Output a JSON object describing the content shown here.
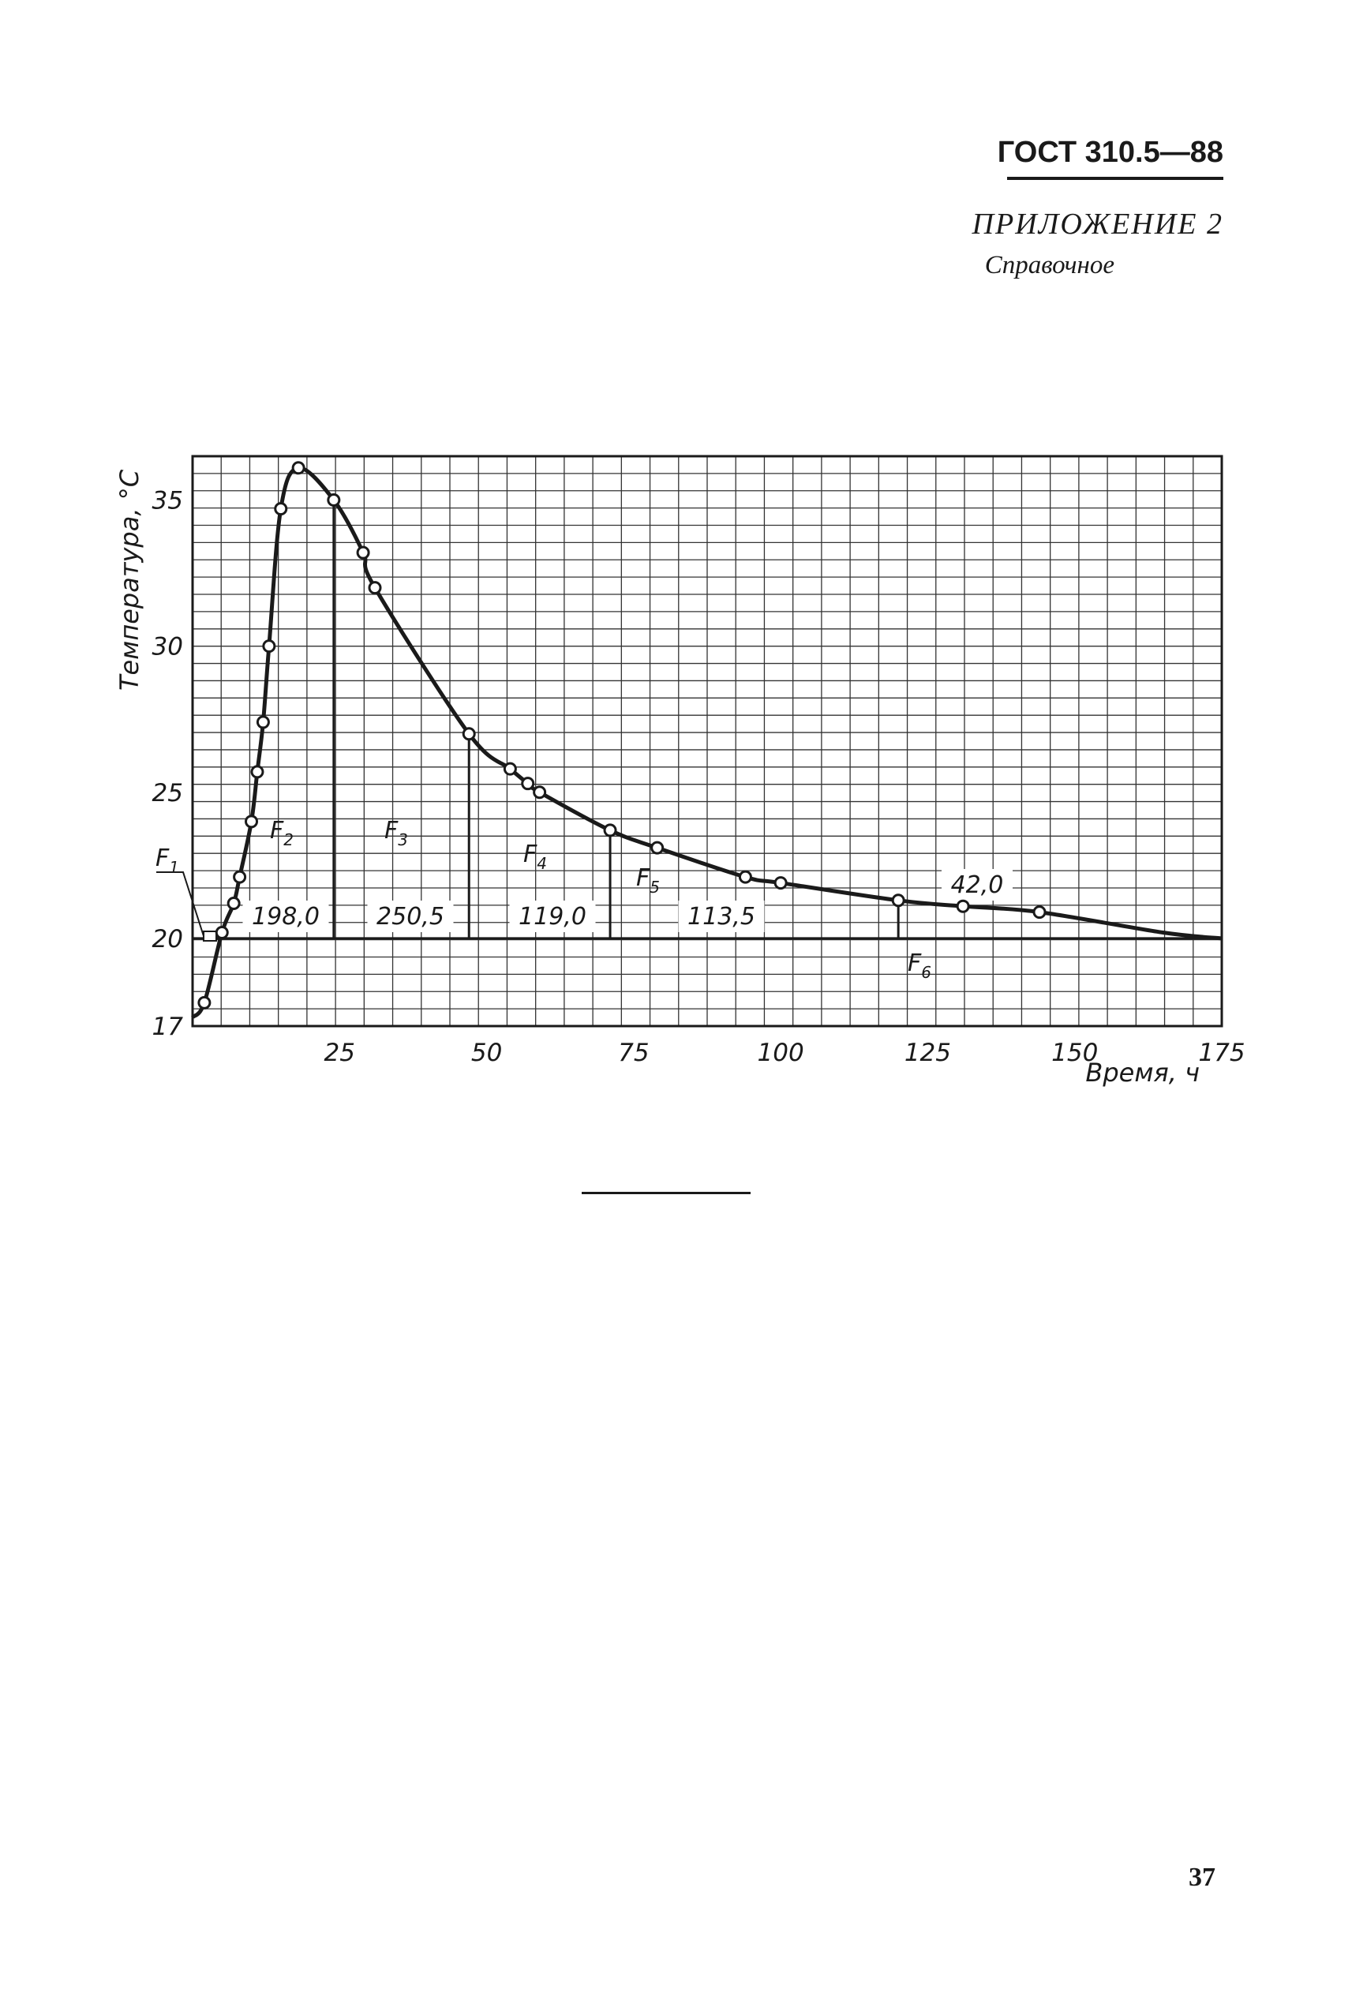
{
  "header": {
    "document_code": "ГОСТ 310.5—88",
    "appendix": "ПРИЛОЖЕНИЕ 2",
    "appendix_type": "Справочное"
  },
  "page": {
    "number": "37"
  },
  "chart_data": {
    "type": "line",
    "title": "",
    "xlabel": "Время, ч",
    "ylabel": "Температура, °С",
    "xlim": [
      0,
      175
    ],
    "ylim": [
      17,
      36.5
    ],
    "x_ticks": [
      25,
      50,
      75,
      100,
      125,
      150,
      175
    ],
    "y_ticks": [
      17,
      20,
      25,
      30,
      35
    ],
    "grid": true,
    "series": [
      {
        "name": "",
        "x": [
          0,
          2,
          5,
          7,
          8,
          10,
          11,
          12,
          13,
          15,
          18,
          24,
          29,
          31,
          47,
          54,
          57,
          59,
          71,
          79,
          94,
          100,
          120,
          131,
          144,
          165,
          180
        ],
        "y": [
          17.3,
          17.8,
          20.2,
          21.2,
          22.1,
          24.0,
          25.7,
          27.4,
          30.0,
          34.7,
          36.1,
          35.0,
          33.2,
          32.0,
          27.0,
          25.8,
          25.3,
          25.0,
          23.7,
          23.1,
          22.1,
          21.9,
          21.3,
          21.1,
          20.9,
          20.2,
          20.0
        ]
      }
    ],
    "markers": [
      {
        "x": 2,
        "y": 17.8
      },
      {
        "x": 5,
        "y": 20.2
      },
      {
        "x": 7,
        "y": 21.2
      },
      {
        "x": 8,
        "y": 22.1
      },
      {
        "x": 10,
        "y": 24.0
      },
      {
        "x": 11,
        "y": 25.7
      },
      {
        "x": 12,
        "y": 27.4
      },
      {
        "x": 13,
        "y": 30.0
      },
      {
        "x": 15,
        "y": 34.7
      },
      {
        "x": 18,
        "y": 36.1
      },
      {
        "x": 24,
        "y": 35.0
      },
      {
        "x": 29,
        "y": 33.2
      },
      {
        "x": 31,
        "y": 32.0
      },
      {
        "x": 47,
        "y": 27.0
      },
      {
        "x": 54,
        "y": 25.8
      },
      {
        "x": 57,
        "y": 25.3
      },
      {
        "x": 59,
        "y": 25.0
      },
      {
        "x": 71,
        "y": 23.7
      },
      {
        "x": 79,
        "y": 23.1
      },
      {
        "x": 94,
        "y": 22.1
      },
      {
        "x": 100,
        "y": 21.9
      },
      {
        "x": 120,
        "y": 21.3
      },
      {
        "x": 131,
        "y": 21.1
      },
      {
        "x": 144,
        "y": 20.9
      }
    ],
    "baseline_y": 20,
    "boundaries_x": [
      24,
      47,
      71,
      120
    ],
    "areas": [
      {
        "label": "F",
        "sub": "1"
      },
      {
        "label": "F",
        "sub": "2",
        "value": "198,0"
      },
      {
        "label": "F",
        "sub": "3",
        "value": "250,5"
      },
      {
        "label": "F",
        "sub": "4",
        "value": "119,0"
      },
      {
        "label": "F",
        "sub": "5",
        "value": "113,5"
      },
      {
        "label": "F",
        "sub": "6",
        "value": "42,0"
      }
    ]
  }
}
